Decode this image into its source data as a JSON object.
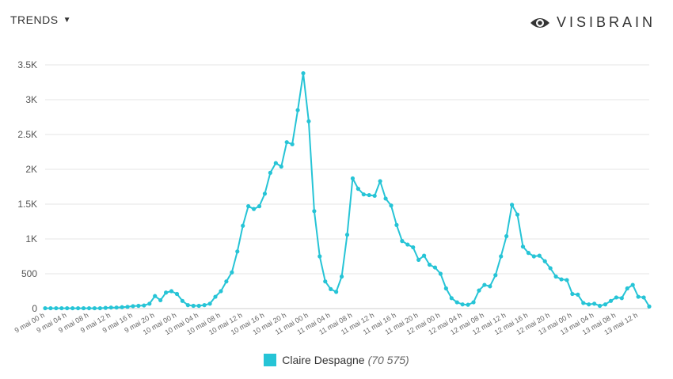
{
  "header": {
    "trends_label": "TRENDS",
    "caret_icon": "caret-down-icon",
    "brand_name": "VISIBRAIN",
    "brand_icon": "eye-logo-icon"
  },
  "colors": {
    "series": "#26c4d6",
    "grid": "#e6e6e6",
    "axis": "#cccccc"
  },
  "legend": {
    "name": "Claire Despagne",
    "count": "(70 575)"
  },
  "chart_data": {
    "type": "line",
    "ylim": [
      0,
      3500
    ],
    "yticks": [
      0,
      500,
      1000,
      1500,
      2000,
      2500,
      3000,
      3500
    ],
    "ytick_labels": [
      "0",
      "500",
      "1K",
      "1.5K",
      "2K",
      "2.5K",
      "3K",
      "3.5K"
    ],
    "xtick_every": 4,
    "xtick_labels": [
      "9 mai 00 h",
      "9 mai 04 h",
      "9 mai 08 h",
      "9 mai 12 h",
      "9 mai 16 h",
      "9 mai 20 h",
      "10 mai 00 h",
      "10 mai 04 h",
      "10 mai 08 h",
      "10 mai 12 h",
      "10 mai 16 h",
      "10 mai 20 h",
      "11 mai 00 h",
      "11 mai 04 h",
      "11 mai 08 h",
      "11 mai 12 h",
      "11 mai 16 h",
      "11 mai 20 h",
      "12 mai 00 h",
      "12 mai 04 h",
      "12 mai 08 h",
      "12 mai 12 h",
      "12 mai 16 h",
      "12 mai 20 h",
      "13 mai 00 h",
      "13 mai 04 h",
      "13 mai 08 h",
      "13 mai 12 h"
    ],
    "series": [
      {
        "name": "Claire Despagne",
        "values": [
          5,
          5,
          5,
          5,
          5,
          5,
          5,
          5,
          5,
          5,
          5,
          10,
          15,
          15,
          20,
          25,
          35,
          40,
          45,
          70,
          180,
          120,
          230,
          250,
          210,
          110,
          50,
          40,
          40,
          50,
          70,
          170,
          250,
          390,
          520,
          820,
          1190,
          1470,
          1430,
          1470,
          1650,
          1950,
          2090,
          2040,
          2390,
          2360,
          2850,
          3380,
          2690,
          1400,
          750,
          390,
          280,
          240,
          460,
          1060,
          1870,
          1720,
          1640,
          1630,
          1620,
          1830,
          1580,
          1480,
          1200,
          970,
          920,
          880,
          700,
          760,
          630,
          590,
          500,
          290,
          150,
          90,
          60,
          55,
          90,
          260,
          340,
          320,
          480,
          750,
          1040,
          1490,
          1350,
          890,
          800,
          750,
          760,
          680,
          580,
          460,
          420,
          410,
          210,
          200,
          80,
          60,
          70,
          40,
          60,
          110,
          160,
          150,
          290,
          340,
          170,
          160,
          30
        ]
      }
    ]
  }
}
